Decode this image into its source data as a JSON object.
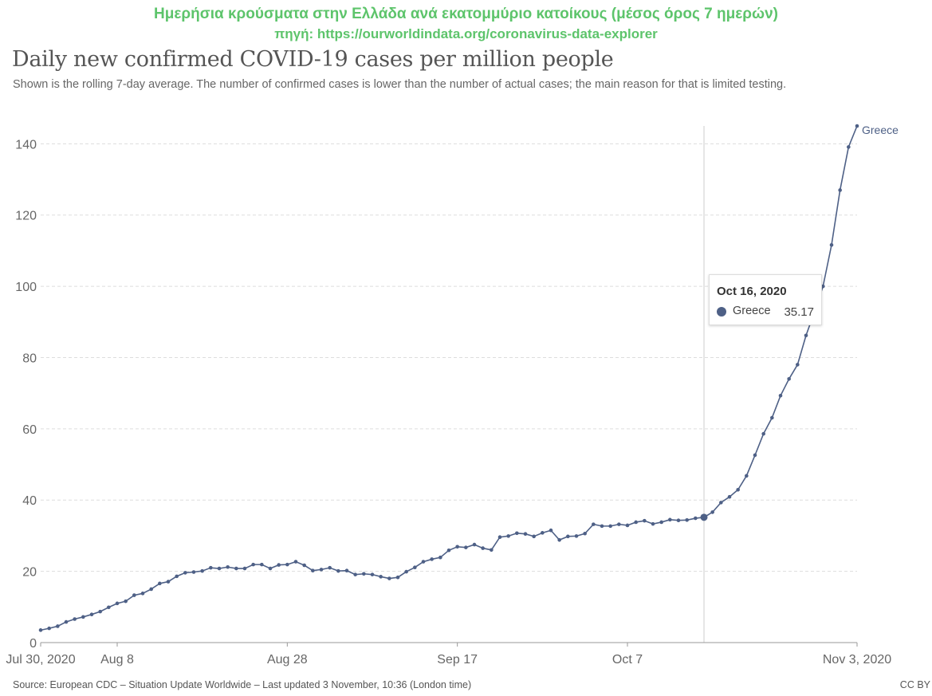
{
  "annotation": {
    "line1": "Ημερήσια κρούσματα στην Ελλάδα ανά εκατομμύριο κατοίκους (μέσος όρος 7 ημερών)",
    "line2": "πηγή: https://ourworldindata.org/coronavirus-data-explorer"
  },
  "tooltip": {
    "date": "Oct 16, 2020",
    "series": "Greece",
    "value": "35.17"
  },
  "footer": {
    "source": "Source: European CDC – Situation Update Worldwide – Last updated 3 November, 10:36 (London time)",
    "license": "CC BY"
  },
  "colors": {
    "series": "#4e6086",
    "annotation": "#5dc46b",
    "grid": "#dddddd"
  },
  "chart_data": {
    "type": "line",
    "title": "Daily new confirmed COVID-19 cases per million people",
    "subtitle": "Shown is the rolling 7-day average. The number of confirmed cases is lower than the number of actual cases; the main reason for that is limited testing.",
    "xlabel": "",
    "ylabel": "",
    "x_start": "Jul 30, 2020",
    "x_end": "Nov 3, 2020",
    "x_domain_days": [
      0,
      96
    ],
    "xticks": [
      {
        "day": 0,
        "label": "Jul 30, 2020"
      },
      {
        "day": 9,
        "label": "Aug 8"
      },
      {
        "day": 29,
        "label": "Aug 28"
      },
      {
        "day": 49,
        "label": "Sep 17"
      },
      {
        "day": 69,
        "label": "Oct 7"
      },
      {
        "day": 96,
        "label": "Nov 3, 2020"
      }
    ],
    "ylim": [
      0,
      145
    ],
    "yticks": [
      0,
      20,
      40,
      60,
      80,
      100,
      120,
      140
    ],
    "grid": true,
    "highlight": {
      "day": 78,
      "label": "Oct 16, 2020",
      "value": 35.17
    },
    "series": [
      {
        "name": "Greece",
        "label": "Greece",
        "values": [
          3.5,
          4.0,
          4.6,
          5.8,
          6.6,
          7.2,
          7.9,
          8.7,
          9.9,
          11.0,
          11.6,
          13.3,
          13.8,
          15.0,
          16.6,
          17.1,
          18.6,
          19.6,
          19.8,
          20.1,
          21.0,
          20.8,
          21.2,
          20.8,
          20.8,
          21.9,
          21.9,
          20.8,
          21.8,
          21.9,
          22.7,
          21.7,
          20.2,
          20.5,
          21.0,
          20.1,
          20.2,
          19.1,
          19.3,
          19.1,
          18.5,
          18.0,
          18.3,
          19.9,
          21.1,
          22.7,
          23.4,
          23.9,
          25.9,
          26.9,
          26.7,
          27.5,
          26.5,
          26.0,
          29.6,
          29.9,
          30.7,
          30.5,
          29.8,
          30.8,
          31.5,
          28.8,
          29.8,
          29.9,
          30.6,
          33.2,
          32.7,
          32.7,
          33.2,
          32.9,
          33.8,
          34.2,
          33.3,
          33.8,
          34.5,
          34.3,
          34.4,
          34.9,
          35.17,
          36.6,
          39.3,
          40.9,
          42.9,
          46.8,
          52.6,
          58.6,
          63.1,
          69.3,
          74.0,
          78.0,
          86.2,
          92.9,
          100.0,
          111.6,
          127.0,
          139.1,
          145.0
        ]
      }
    ]
  }
}
